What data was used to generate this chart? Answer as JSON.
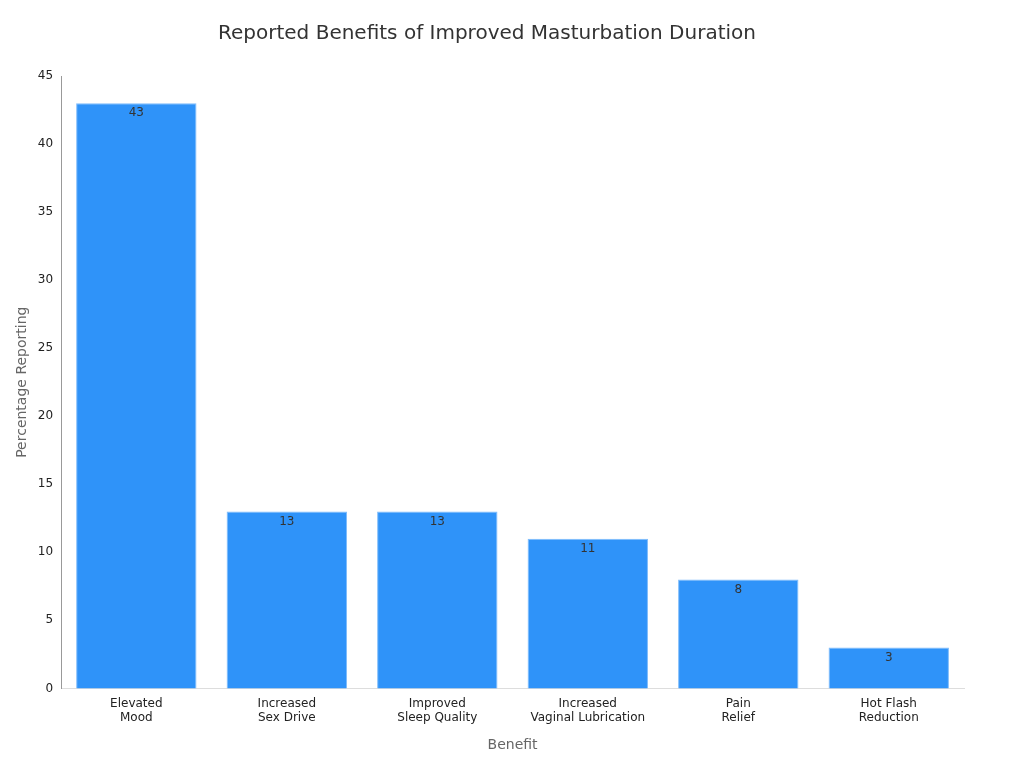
{
  "chart_data": {
    "type": "bar",
    "title": "Reported Benefits of Improved Masturbation Duration",
    "xlabel": "Benefit",
    "ylabel": "Percentage Reporting",
    "categories": [
      "Elevated Mood",
      "Increased Sex Drive",
      "Improved Sleep Quality",
      "Increased Vaginal Lubrication",
      "Pain Relief",
      "Hot Flash Reduction"
    ],
    "values": [
      43,
      13,
      13,
      11,
      8,
      3
    ],
    "color": "#2f93f9",
    "ylim": [
      0,
      45
    ],
    "yticks": [
      0,
      5,
      10,
      15,
      20,
      25,
      30,
      35,
      40,
      45
    ],
    "grid": false,
    "legend": false,
    "data_labels": true
  }
}
